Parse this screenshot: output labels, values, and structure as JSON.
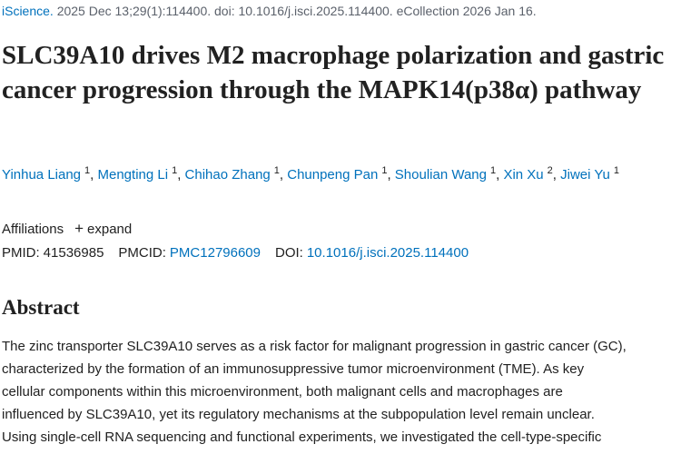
{
  "citation": {
    "journal": "iScience.",
    "details": "2025 Dec 13;29(1):114400. doi: 10.1016/j.isci.2025.114400. eCollection 2026 Jan 16."
  },
  "title": "SLC39A10 drives M2 macrophage polarization and gastric cancer progression through the MAPK14(p38α) pathway",
  "author_separator": ",",
  "authors": [
    {
      "name": "Yinhua Liang",
      "affiliation": "1"
    },
    {
      "name": "Mengting Li",
      "affiliation": "1"
    },
    {
      "name": "Chihao Zhang",
      "affiliation": "1"
    },
    {
      "name": "Chunpeng Pan",
      "affiliation": "1"
    },
    {
      "name": "Shoulian Wang",
      "affiliation": "1"
    },
    {
      "name": "Xin Xu",
      "affiliation": "2"
    },
    {
      "name": "Jiwei Yu",
      "affiliation": "1"
    }
  ],
  "affiliations": {
    "label": "Affiliations",
    "toggle": "expand"
  },
  "ids": [
    {
      "label": "PMID:",
      "value": "41536985"
    },
    {
      "label": "PMCID:",
      "value": "PMC12796609"
    },
    {
      "label": "DOI:",
      "value": "10.1016/j.isci.2025.114400"
    }
  ],
  "abstract": {
    "heading": "Abstract",
    "lines": [
      "The zinc transporter SLC39A10 serves as a risk factor for malignant progression in gastric cancer (GC),",
      "characterized by the formation of an immunosuppressive tumor microenvironment (TME). As key",
      "cellular components within this microenvironment, both malignant cells and macrophages are",
      "influenced by SLC39A10, yet its regulatory mechanisms at the subpopulation level remain unclear.",
      "Using single-cell RNA sequencing and functional experiments, we investigated the cell-type-specific"
    ]
  }
}
